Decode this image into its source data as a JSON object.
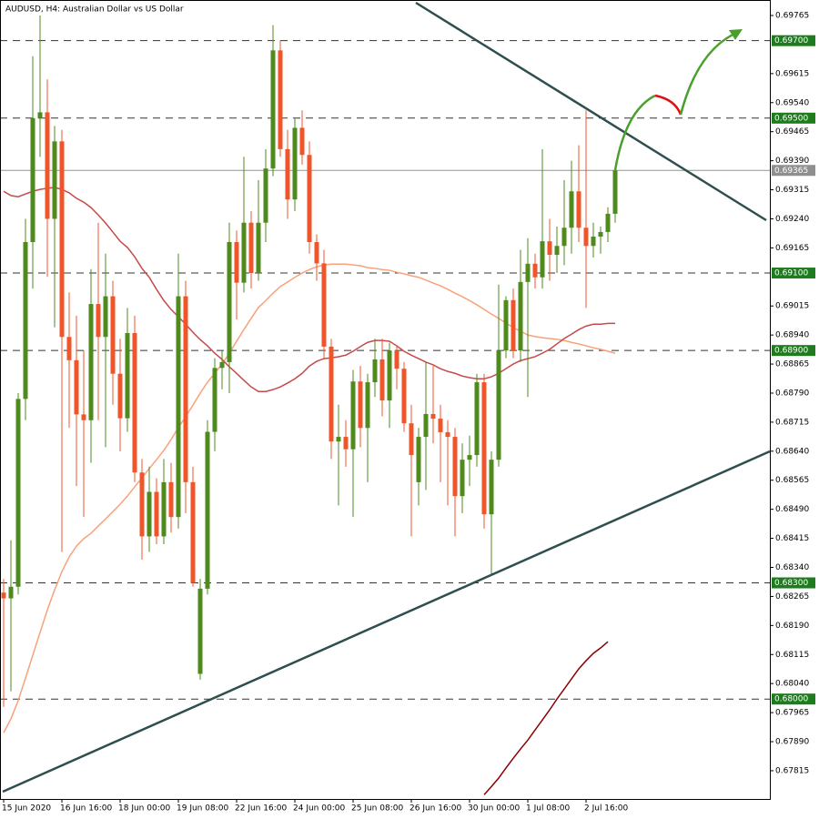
{
  "chart_data": {
    "type": "candlestick",
    "title": "AUDUSD, H4:  Australian Dollar vs US Dollar",
    "categories": [
      "15 Jun 2020",
      null,
      null,
      null,
      null,
      null,
      null,
      null,
      "16 Jun 16:00",
      null,
      null,
      null,
      null,
      null,
      null,
      null,
      "18 Jun 00:00",
      null,
      null,
      null,
      null,
      null,
      null,
      null,
      "19 Jun 08:00",
      null,
      null,
      null,
      null,
      null,
      null,
      null,
      "22 Jun 16:00",
      null,
      null,
      null,
      null,
      null,
      null,
      null,
      "24 Jun 00:00",
      null,
      null,
      null,
      null,
      null,
      null,
      null,
      "25 Jun 08:00",
      null,
      null,
      null,
      null,
      null,
      null,
      null,
      "26 Jun 16:00",
      null,
      null,
      null,
      null,
      null,
      null,
      null,
      "30 Jun 00:00",
      null,
      null,
      null,
      null,
      null,
      null,
      null,
      "1 Jul 08:00",
      null,
      null,
      null,
      null,
      null,
      null,
      null,
      "2 Jul 16:00",
      null,
      null,
      null,
      null
    ],
    "open": [
      0.68275,
      0.6826,
      0.6829,
      0.68775,
      0.6918,
      0.695,
      0.69515,
      0.6924,
      0.6944,
      0.68935,
      0.68875,
      0.68735,
      0.6872,
      0.6902,
      0.68935,
      0.6904,
      0.6884,
      0.68725,
      0.68945,
      0.68585,
      0.6842,
      0.68535,
      0.6842,
      0.6856,
      0.6847,
      0.6904,
      0.6856,
      0.68065,
      0.68285,
      0.6869,
      0.68855,
      0.6887,
      0.6918,
      0.69075,
      0.6923,
      0.691,
      0.6923,
      0.6937,
      0.69675,
      0.6942,
      0.6929,
      0.69475,
      0.69405,
      0.6918,
      0.69125,
      0.6891,
      0.68665,
      0.68677,
      0.68645,
      0.6882,
      0.687,
      0.68818,
      0.68877,
      0.68771,
      0.689,
      0.68853,
      0.68712,
      0.6856,
      0.68677,
      0.68736,
      0.68724,
      0.68689,
      0.68677,
      0.68524,
      0.68618,
      0.6863,
      0.68818,
      0.68477,
      0.68618,
      0.689,
      0.6903,
      0.689,
      0.69077,
      0.69124,
      0.69089,
      0.69182,
      0.69147,
      0.6917,
      0.69217,
      0.69311,
      0.69217,
      0.6917,
      0.69194,
      0.69206,
      0.69253
    ],
    "high": [
      0.6831,
      0.6841,
      0.6879,
      0.6924,
      0.6966,
      0.69765,
      0.696,
      0.6948,
      0.6947,
      0.6905,
      0.6899,
      0.689,
      0.6911,
      0.6923,
      0.6915,
      0.6908,
      0.6893,
      0.6901,
      0.6899,
      0.6862,
      0.686,
      0.6857,
      0.6862,
      0.6861,
      0.6915,
      0.6908,
      0.686,
      0.6831,
      0.6872,
      0.6888,
      0.689,
      0.6923,
      0.6921,
      0.694,
      0.6926,
      0.6934,
      0.6942,
      0.6974,
      0.697,
      0.6947,
      0.695,
      0.6952,
      0.6944,
      0.692,
      0.6916,
      0.6893,
      0.6876,
      0.6872,
      0.6885,
      0.6886,
      0.6884,
      0.6893,
      0.6893,
      0.6892,
      0.6891,
      0.6887,
      0.6876,
      0.687,
      0.6887,
      0.6886,
      0.6876,
      0.6872,
      0.687,
      0.6866,
      0.6868,
      0.6884,
      0.6884,
      0.6864,
      0.6907,
      0.6904,
      0.6906,
      0.6916,
      0.6919,
      0.6915,
      0.6942,
      0.6924,
      0.6922,
      0.6934,
      0.6939,
      0.6943,
      0.6952,
      0.6923,
      0.6922,
      0.6927,
      0.6937
    ],
    "low": [
      0.6798,
      0.6802,
      0.6827,
      0.6872,
      0.6906,
      0.694,
      0.6909,
      0.6896,
      0.6838,
      0.687,
      0.6855,
      0.6847,
      0.6861,
      0.6872,
      0.6865,
      0.6876,
      0.6864,
      0.6869,
      0.6856,
      0.6836,
      0.6838,
      0.684,
      0.684,
      0.6843,
      0.6844,
      0.6848,
      0.6829,
      0.6805,
      0.6827,
      0.6864,
      0.688,
      0.6879,
      0.6898,
      0.6905,
      0.6906,
      0.6908,
      0.6918,
      0.6935,
      0.694,
      0.6924,
      0.6926,
      0.6938,
      0.6915,
      0.6908,
      0.6888,
      0.6862,
      0.685,
      0.686,
      0.6847,
      0.6865,
      0.6856,
      0.6878,
      0.6873,
      0.687,
      0.688,
      0.6869,
      0.6842,
      0.685,
      0.6854,
      0.6866,
      0.6856,
      0.685,
      0.6842,
      0.6848,
      0.6855,
      0.686,
      0.6844,
      0.6832,
      0.686,
      0.6888,
      0.6888,
      0.6887,
      0.6878,
      0.6906,
      0.6906,
      0.6908,
      0.691,
      0.6912,
      0.6915,
      0.6918,
      0.6901,
      0.6914,
      0.6915,
      0.6918,
      0.6923
    ],
    "close": [
      0.6826,
      0.6829,
      0.68775,
      0.6918,
      0.695,
      0.69515,
      0.6924,
      0.6944,
      0.68935,
      0.68875,
      0.68735,
      0.6872,
      0.6902,
      0.68935,
      0.6904,
      0.6884,
      0.68725,
      0.68945,
      0.68585,
      0.6842,
      0.68535,
      0.6842,
      0.6856,
      0.6847,
      0.6904,
      0.6856,
      0.683,
      0.68285,
      0.6869,
      0.68855,
      0.6887,
      0.6918,
      0.69075,
      0.6923,
      0.691,
      0.6923,
      0.6937,
      0.69675,
      0.6942,
      0.6929,
      0.69475,
      0.69405,
      0.6918,
      0.69125,
      0.6891,
      0.68665,
      0.68677,
      0.68645,
      0.6882,
      0.687,
      0.68818,
      0.68877,
      0.68771,
      0.689,
      0.68853,
      0.68712,
      0.6863,
      0.68677,
      0.68736,
      0.68724,
      0.68689,
      0.68677,
      0.68524,
      0.68618,
      0.6863,
      0.68818,
      0.68477,
      0.68618,
      0.689,
      0.6903,
      0.689,
      0.69077,
      0.69124,
      0.69089,
      0.69182,
      0.69147,
      0.6917,
      0.69217,
      0.69311,
      0.69217,
      0.6917,
      0.69194,
      0.69206,
      0.69253,
      0.69365
    ],
    "up_color": "#4e8a1c",
    "down_color": "#f0552a",
    "series": [
      {
        "color": "#f7a27a",
        "values": [
          0.67913,
          0.67949,
          0.67996,
          0.68054,
          0.68113,
          0.68172,
          0.6823,
          0.68282,
          0.68329,
          0.68367,
          0.68395,
          0.68414,
          0.68428,
          0.68447,
          0.68465,
          0.68484,
          0.68503,
          0.68524,
          0.68548,
          0.68571,
          0.68595,
          0.68618,
          0.68642,
          0.6867,
          0.68701,
          0.68729,
          0.68759,
          0.6879,
          0.68818,
          0.68841,
          0.68865,
          0.68893,
          0.68924,
          0.68954,
          0.68983,
          0.69011,
          0.69029,
          0.69048,
          0.69065,
          0.69077,
          0.69089,
          0.691,
          0.69109,
          0.69116,
          0.69121,
          0.69123,
          0.69123,
          0.69123,
          0.69121,
          0.69119,
          0.69114,
          0.69112,
          0.69109,
          0.69107,
          0.69102,
          0.69098,
          0.69093,
          0.69089,
          0.69082,
          0.69074,
          0.69067,
          0.69058,
          0.69048,
          0.69039,
          0.69029,
          0.69018,
          0.69006,
          0.68994,
          0.68983,
          0.68971,
          0.68959,
          0.6895,
          0.6894,
          0.68936,
          0.68933,
          0.68931,
          0.68929,
          0.68926,
          0.68921,
          0.68917,
          0.68912,
          0.68907,
          0.68903,
          0.68898,
          0.68893
        ]
      },
      {
        "color": "#c8494a",
        "values": [
          0.69311,
          0.693,
          0.69297,
          0.69304,
          0.69311,
          0.69316,
          0.69319,
          0.69321,
          0.69316,
          0.69307,
          0.69293,
          0.69283,
          0.69269,
          0.6925,
          0.69229,
          0.69206,
          0.69182,
          0.69166,
          0.69142,
          0.69112,
          0.69089,
          0.69058,
          0.69029,
          0.69006,
          0.68987,
          0.68968,
          0.68947,
          0.68928,
          0.68912,
          0.68893,
          0.68877,
          0.68858,
          0.68841,
          0.68823,
          0.68806,
          0.68794,
          0.68794,
          0.68799,
          0.68806,
          0.68816,
          0.68827,
          0.68841,
          0.6886,
          0.68872,
          0.68879,
          0.68881,
          0.68884,
          0.68888,
          0.68898,
          0.6891,
          0.68921,
          0.68926,
          0.68926,
          0.68924,
          0.68912,
          0.68898,
          0.68888,
          0.68879,
          0.6887,
          0.68863,
          0.68853,
          0.68846,
          0.68841,
          0.68834,
          0.6883,
          0.68827,
          0.68827,
          0.68832,
          0.68841,
          0.68853,
          0.68865,
          0.68874,
          0.68879,
          0.68884,
          0.68893,
          0.68903,
          0.68917,
          0.68931,
          0.68942,
          0.68954,
          0.68963,
          0.68968,
          0.68968,
          0.6897,
          0.6897
        ]
      },
      {
        "color": "#8b0000",
        "values": [
          null,
          null,
          null,
          null,
          null,
          null,
          null,
          null,
          null,
          null,
          null,
          null,
          null,
          null,
          null,
          null,
          null,
          null,
          null,
          null,
          null,
          null,
          null,
          null,
          null,
          null,
          null,
          null,
          null,
          null,
          null,
          null,
          null,
          null,
          null,
          null,
          null,
          null,
          null,
          null,
          null,
          null,
          null,
          null,
          null,
          null,
          null,
          null,
          null,
          null,
          null,
          null,
          null,
          null,
          null,
          null,
          null,
          null,
          null,
          null,
          null,
          null,
          null,
          null,
          null,
          null,
          0.67753,
          0.67774,
          0.67796,
          0.67822,
          0.67847,
          0.67871,
          0.67894,
          0.6792,
          0.67946,
          0.67972,
          0.68,
          0.68026,
          0.68052,
          0.68078,
          0.68099,
          0.68118,
          0.68132,
          0.68148,
          null
        ]
      }
    ],
    "ylim": [
      0.67742,
      0.69805
    ],
    "yticks": [
      {
        "value": 0.69765,
        "label": "0.69765"
      },
      {
        "value": 0.69615,
        "label": "0.69615"
      },
      {
        "value": 0.6954,
        "label": "0.69540"
      },
      {
        "value": 0.69465,
        "label": "0.69465"
      },
      {
        "value": 0.6939,
        "label": "0.69390"
      },
      {
        "value": 0.69315,
        "label": "0.69315"
      },
      {
        "value": 0.6924,
        "label": "0.69240"
      },
      {
        "value": 0.69165,
        "label": "0.69165"
      },
      {
        "value": 0.69015,
        "label": "0.69015"
      },
      {
        "value": 0.6894,
        "label": "0.68940"
      },
      {
        "value": 0.68865,
        "label": "0.68865"
      },
      {
        "value": 0.6879,
        "label": "0.68790"
      },
      {
        "value": 0.68715,
        "label": "0.68715"
      },
      {
        "value": 0.6864,
        "label": "0.68640"
      },
      {
        "value": 0.68565,
        "label": "0.68565"
      },
      {
        "value": 0.6849,
        "label": "0.68490"
      },
      {
        "value": 0.68415,
        "label": "0.68415"
      },
      {
        "value": 0.6834,
        "label": "0.68340"
      },
      {
        "value": 0.68265,
        "label": "0.68265"
      },
      {
        "value": 0.6819,
        "label": "0.68190"
      },
      {
        "value": 0.68115,
        "label": "0.68115"
      },
      {
        "value": 0.6804,
        "label": "0.68040"
      },
      {
        "value": 0.67965,
        "label": "0.67965"
      },
      {
        "value": 0.6789,
        "label": "0.67890"
      },
      {
        "value": 0.67815,
        "label": "0.67815"
      }
    ],
    "levels": [
      {
        "value": 0.697,
        "label": "0.69700"
      },
      {
        "value": 0.695,
        "label": "0.69500"
      },
      {
        "value": 0.691,
        "label": "0.69100"
      },
      {
        "value": 0.689,
        "label": "0.68900"
      },
      {
        "value": 0.683,
        "label": "0.68300"
      },
      {
        "value": 0.68,
        "label": "0.68000"
      }
    ],
    "current_price": {
      "value": 0.69365,
      "label": "0.69365"
    }
  }
}
